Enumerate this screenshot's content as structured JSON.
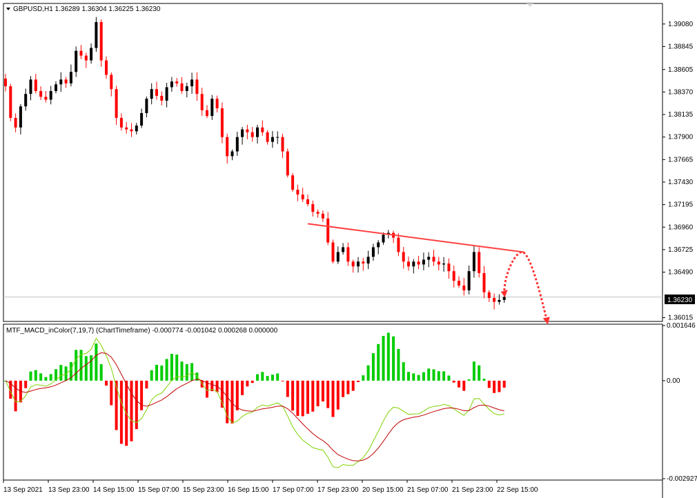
{
  "header": {
    "symbol_info": "GBPUSD,H1  1.36289 1.36304 1.36225 1.36230"
  },
  "indicator": {
    "label": "MTF_MACD_inColor(7,19,7) (ChartTimeframe) -0.000774 -0.001042 0.000268 0.000000"
  },
  "colors": {
    "bull_candle": "#000000",
    "bear_candle": "#ff0000",
    "hist_positive": "#00cc00",
    "hist_negative": "#ff0000",
    "macd_line": "#7fd100",
    "signal_line": "#c00000",
    "trendline": "#ff4040",
    "forecast": "#ff3030",
    "grid": "#c0c0c0"
  },
  "chart_data": [
    {
      "type": "candlestick",
      "title": "GBPUSD,H1",
      "ylim": [
        1.3599,
        1.3928
      ],
      "y_ticks": [
        "1.39080",
        "1.38845",
        "1.38605",
        "1.38370",
        "1.38135",
        "1.37900",
        "1.37665",
        "1.37430",
        "1.37195",
        "1.36960",
        "1.36725",
        "1.36490",
        "1.36230",
        "1.36015"
      ],
      "current_price_label": "1.36230",
      "current_price": 1.3623,
      "ohlc_last": {
        "open": 1.36289,
        "high": 1.36304,
        "low": 1.36225,
        "close": 1.3623
      },
      "x_ticks": [
        "13 Sep 2021",
        "13 Sep 23:00",
        "14 Sep 15:00",
        "15 Sep 07:00",
        "15 Sep 23:00",
        "16 Sep 15:00",
        "17 Sep 07:00",
        "17 Sep 23:00",
        "20 Sep 15:00",
        "21 Sep 07:00",
        "21 Sep 23:00",
        "22 Sep 15:00"
      ],
      "close_path": [
        1.3843,
        1.381,
        1.38,
        1.3822,
        1.3835,
        1.385,
        1.3838,
        1.3832,
        1.3829,
        1.3838,
        1.3845,
        1.385,
        1.3846,
        1.3858,
        1.388,
        1.3875,
        1.387,
        1.3883,
        1.391,
        1.387,
        1.3855,
        1.384,
        1.381,
        1.38,
        1.3798,
        1.3796,
        1.3802,
        1.3815,
        1.383,
        1.384,
        1.3833,
        1.3828,
        1.3842,
        1.3848,
        1.3846,
        1.3838,
        1.3843,
        1.385,
        1.3835,
        1.3818,
        1.3812,
        1.383,
        1.382,
        1.379,
        1.377,
        1.3775,
        1.379,
        1.3798,
        1.3795,
        1.379,
        1.38,
        1.3795,
        1.3785,
        1.379,
        1.379,
        1.3775,
        1.375,
        1.3735,
        1.373,
        1.3725,
        1.372,
        1.3712,
        1.371,
        1.3705,
        1.368,
        1.366,
        1.367,
        1.3675,
        1.366,
        1.3655,
        1.366,
        1.3658,
        1.3665,
        1.3675,
        1.368,
        1.3688,
        1.369,
        1.3685,
        1.367,
        1.366,
        1.3655,
        1.366,
        1.3657,
        1.3662,
        1.3665,
        1.366,
        1.3657,
        1.3658,
        1.365,
        1.364,
        1.3635,
        1.363,
        1.365,
        1.367,
        1.3648,
        1.3628,
        1.3622,
        1.3618,
        1.362,
        1.3623
      ],
      "trendline": {
        "from": {
          "index": 60,
          "price": 1.36995
        },
        "to": {
          "index": 103,
          "price": 1.36698
        }
      },
      "forecast": {
        "from": {
          "index": 99,
          "price": 1.363
        },
        "peak": {
          "index": 102.5,
          "price": 1.367
        },
        "to": {
          "index": 107.5,
          "price": 1.3598
        }
      }
    },
    {
      "type": "histogram_with_lines",
      "title": "MTF_MACD_inColor(7,19,7)",
      "ylim": [
        -0.002927,
        0.001646
      ],
      "y_ticks": [
        "0.001646",
        "0.00",
        "-0.002927"
      ],
      "note": "histogram, MACD line and signal line derived from close_path by the script"
    }
  ]
}
